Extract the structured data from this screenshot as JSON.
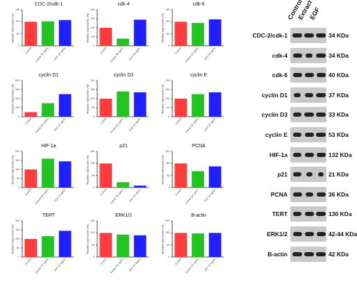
{
  "colors": {
    "control": "#ff3b3b",
    "extract": "#22c322",
    "egf": "#1f1fff"
  },
  "chart_data": [
    {
      "type": "bar",
      "title": "CDC-2/cdk-1",
      "ylabel": "Relative expression (%)",
      "categories": [
        "Control",
        "Extract 30 ug/mL",
        "EGF 10 ng/mL"
      ],
      "values": [
        100,
        102,
        107
      ],
      "ylim": [
        0,
        150
      ],
      "yticks": [
        0,
        50,
        100,
        150
      ]
    },
    {
      "type": "bar",
      "title": "cdk-4",
      "ylabel": "Relative expression (%)",
      "categories": [
        "Control",
        "Extract 30 ug/mL",
        "EGF 10 ng/mL"
      ],
      "values": [
        100,
        40,
        145
      ],
      "ylim": [
        0,
        200
      ],
      "yticks": [
        0,
        50,
        100,
        150,
        200
      ]
    },
    {
      "type": "bar",
      "title": "cdk-6",
      "ylabel": "Relative expression (%)",
      "categories": [
        "Control",
        "Extract 30 ug/mL",
        "EGF 10 ng/mL"
      ],
      "values": [
        100,
        95,
        110
      ],
      "ylim": [
        0,
        150
      ],
      "yticks": [
        0,
        50,
        100,
        150
      ]
    },
    {
      "type": "bar",
      "title": "cyclin D1",
      "ylabel": "Relative expression (%)",
      "categories": [
        "Control",
        "Extract 30 ug/mL",
        "EGF 10 ng/mL"
      ],
      "values": [
        100,
        300,
        500
      ],
      "ylim": [
        0,
        800
      ],
      "yticks": [
        0,
        200,
        400,
        600,
        800
      ]
    },
    {
      "type": "bar",
      "title": "cyclin D3",
      "ylabel": "Relative expression (%)",
      "categories": [
        "Control",
        "Extract 30 ug/mL",
        "EGF 10 ng/mL"
      ],
      "values": [
        100,
        140,
        135
      ],
      "ylim": [
        0,
        200
      ],
      "yticks": [
        0,
        50,
        100,
        150,
        200
      ]
    },
    {
      "type": "bar",
      "title": "cyclin E",
      "ylabel": "Relative expression (%)",
      "categories": [
        "Control",
        "Extract 30 ug/mL",
        "EGF 10 ng/mL"
      ],
      "values": [
        100,
        125,
        135
      ],
      "ylim": [
        0,
        200
      ],
      "yticks": [
        0,
        50,
        100,
        150,
        200
      ]
    },
    {
      "type": "bar",
      "title": "HIF-1a",
      "ylabel": "Relative expression (%)",
      "categories": [
        "Control",
        "Extract 30 ug/mL",
        "EGF 10 ng/mL"
      ],
      "values": [
        100,
        160,
        145
      ],
      "ylim": [
        0,
        200
      ],
      "yticks": [
        0,
        50,
        100,
        150,
        200
      ]
    },
    {
      "type": "bar",
      "title": "p21",
      "ylabel": "Relative expression (%)",
      "categories": [
        "Control",
        "Extract 30 ug/mL",
        "EGF 10 ng/mL"
      ],
      "values": [
        100,
        22,
        8
      ],
      "ylim": [
        0,
        150
      ],
      "yticks": [
        0,
        50,
        100,
        150
      ]
    },
    {
      "type": "bar",
      "title": "PCNA",
      "ylabel": "Relative expression (%)",
      "categories": [
        "Control",
        "Extract 30 ug/mL",
        "EGF 10 ng/mL"
      ],
      "values": [
        100,
        68,
        88
      ],
      "ylim": [
        0,
        150
      ],
      "yticks": [
        0,
        50,
        100,
        150
      ]
    },
    {
      "type": "bar",
      "title": "TERT",
      "ylabel": "Relative expression (%)",
      "categories": [
        "Control",
        "Extract 30 ug/mL",
        "EGF 10 ng/mL"
      ],
      "values": [
        100,
        115,
        145
      ],
      "ylim": [
        0,
        200
      ],
      "yticks": [
        0,
        50,
        100,
        150,
        200
      ]
    },
    {
      "type": "bar",
      "title": "ERK1/2",
      "ylabel": "Relative expression (%)",
      "categories": [
        "Control",
        "Extract 30 ug/mL",
        "EGF 10 ng/mL"
      ],
      "values": [
        100,
        93,
        90
      ],
      "ylim": [
        0,
        150
      ],
      "yticks": [
        0,
        50,
        100,
        150
      ]
    },
    {
      "type": "bar",
      "title": "B-actin",
      "ylabel": "Relative expression (%)",
      "categories": [
        "Control",
        "Extract 30 ug/mL",
        "EGF 10 ng/mL"
      ],
      "values": [
        100,
        98,
        100
      ],
      "ylim": [
        0,
        150
      ],
      "yticks": [
        0,
        50,
        100,
        150
      ]
    }
  ],
  "blot": {
    "columns": [
      "Control",
      "Extract",
      "EGF"
    ],
    "rows": [
      {
        "protein": "CDC-2/cdk-1",
        "kda": "34 KDa"
      },
      {
        "protein": "cdk-4",
        "kda": "34 KDa"
      },
      {
        "protein": "cdk-6",
        "kda": "40 KDa"
      },
      {
        "protein": "cyclin D1",
        "kda": "37 KDa"
      },
      {
        "protein": "cyclin D3",
        "kda": "33 KDa"
      },
      {
        "protein": "cyclin E",
        "kda": "53 KDa"
      },
      {
        "protein": "HIF-1a",
        "kda": "132 KDa"
      },
      {
        "protein": "p21",
        "kda": "21 KDa"
      },
      {
        "protein": "PCNA",
        "kda": "36 KDa"
      },
      {
        "protein": "TERT",
        "kda": "130 KDa"
      },
      {
        "protein": "ERK1/2",
        "kda": "42-44 KDa"
      },
      {
        "protein": "B-actin",
        "kda": "42 KDa"
      }
    ]
  }
}
